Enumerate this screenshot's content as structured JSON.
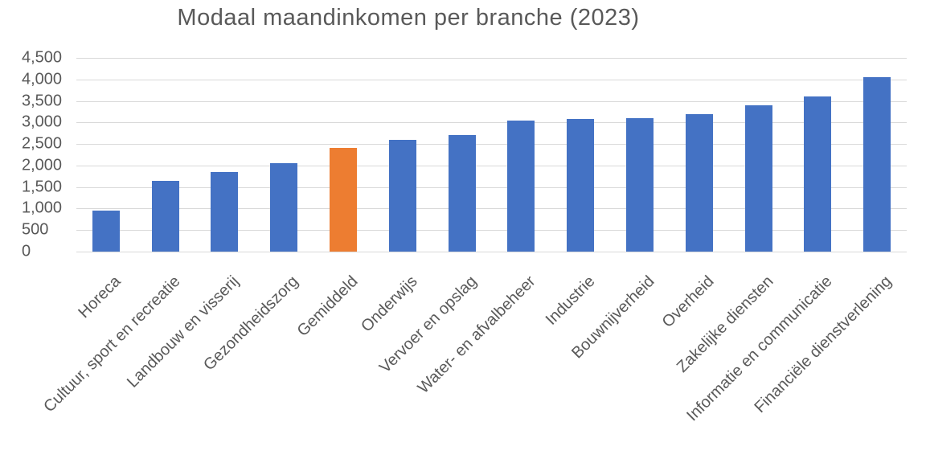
{
  "chart_data": {
    "type": "bar",
    "title": "Modaal maandinkomen per branche (2023)",
    "categories": [
      "Horeca",
      "Cultuur, sport en recreatie",
      "Landbouw en visserij",
      "Gezondheidszorg",
      "Gemiddeld",
      "Onderwijs",
      "Vervoer en opslag",
      "Water- en afvalbeheer",
      "Industrie",
      "Bouwnijverheid",
      "Overheid",
      "Zakelijke diensten",
      "Informatie en communicatie",
      "Financiële dienstverlening"
    ],
    "values": [
      950,
      1650,
      1850,
      2050,
      2400,
      2600,
      2700,
      3050,
      3075,
      3100,
      3200,
      3400,
      3600,
      4050
    ],
    "highlight_category": "Gemiddeld",
    "highlight_index": 4,
    "xlabel": "",
    "ylabel": "",
    "ylim": [
      0,
      4500
    ],
    "ytick_step": 500,
    "ytick_labels": [
      "0",
      "500",
      "1,000",
      "1,500",
      "2,000",
      "2,500",
      "3,000",
      "3,500",
      "4,000",
      "4,500"
    ],
    "grid": true,
    "legend": "none",
    "colors": {
      "bar": "#4472C4",
      "highlight": "#ED7D31",
      "gridline": "#D9D9D9",
      "text": "#595959",
      "background": "#FFFFFF"
    }
  }
}
